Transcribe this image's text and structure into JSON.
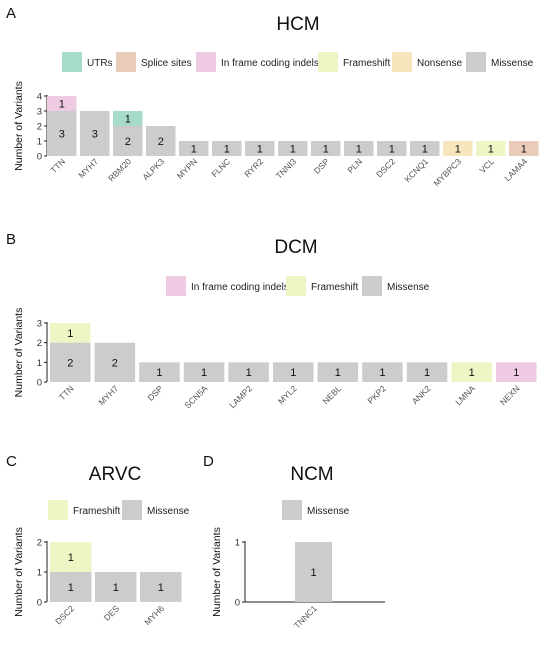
{
  "colors": {
    "UTRs": "#a6dcc7",
    "Splice sites": "#e8cbb9",
    "In frame coding indels": "#eecbe3",
    "Frameshift": "#ecf5c3",
    "Nonsense": "#f6e5bd",
    "Missense": "#cccccc"
  },
  "chart_data": [
    {
      "type": "bar",
      "stacked": true,
      "panel": "A",
      "title": "HCM",
      "ylabel": "Number of Variants",
      "xlabel": "",
      "ylim": [
        0,
        4
      ],
      "yticks": [
        0,
        1,
        2,
        3,
        4
      ],
      "legend": [
        "UTRs",
        "Splice sites",
        "In frame coding indels",
        "Frameshift",
        "Nonsense",
        "Missense"
      ],
      "legend_position": "top",
      "grid": false,
      "categories": [
        "TTN",
        "MYH7",
        "RBM20",
        "ALPK3",
        "MYPN",
        "FLNC",
        "RYR2",
        "TNNI3",
        "DSP",
        "PLN",
        "DSC2",
        "KCNQ1",
        "MYBPC3",
        "VCL",
        "LAMA4"
      ],
      "series": [
        {
          "name": "Missense",
          "values": [
            3,
            3,
            2,
            2,
            1,
            1,
            1,
            1,
            1,
            1,
            1,
            1,
            0,
            0,
            0
          ]
        },
        {
          "name": "In frame coding indels",
          "values": [
            1,
            0,
            0,
            0,
            0,
            0,
            0,
            0,
            0,
            0,
            0,
            0,
            0,
            0,
            0
          ]
        },
        {
          "name": "UTRs",
          "values": [
            0,
            0,
            1,
            0,
            0,
            0,
            0,
            0,
            0,
            0,
            0,
            0,
            0,
            0,
            0
          ]
        },
        {
          "name": "Nonsense",
          "values": [
            0,
            0,
            0,
            0,
            0,
            0,
            0,
            0,
            0,
            0,
            0,
            0,
            1,
            0,
            0
          ]
        },
        {
          "name": "Frameshift",
          "values": [
            0,
            0,
            0,
            0,
            0,
            0,
            0,
            0,
            0,
            0,
            0,
            0,
            0,
            1,
            0
          ]
        },
        {
          "name": "Splice sites",
          "values": [
            0,
            0,
            0,
            0,
            0,
            0,
            0,
            0,
            0,
            0,
            0,
            0,
            0,
            0,
            1
          ]
        }
      ]
    },
    {
      "type": "bar",
      "stacked": true,
      "panel": "B",
      "title": "DCM",
      "ylabel": "Number of Variants",
      "xlabel": "",
      "ylim": [
        0,
        3
      ],
      "yticks": [
        0,
        1,
        2,
        3
      ],
      "legend": [
        "In frame coding indels",
        "Frameshift",
        "Missense"
      ],
      "legend_position": "top",
      "grid": false,
      "categories": [
        "TTN",
        "MYH7",
        "DSP",
        "SCN5A",
        "LAMP2",
        "MYL2",
        "NEBL",
        "PKP2",
        "ANK2",
        "LMNA",
        "NEXN"
      ],
      "series": [
        {
          "name": "Missense",
          "values": [
            2,
            2,
            1,
            1,
            1,
            1,
            1,
            1,
            1,
            0,
            0
          ]
        },
        {
          "name": "Frameshift",
          "values": [
            1,
            0,
            0,
            0,
            0,
            0,
            0,
            0,
            0,
            1,
            0
          ]
        },
        {
          "name": "In frame coding indels",
          "values": [
            0,
            0,
            0,
            0,
            0,
            0,
            0,
            0,
            0,
            0,
            1
          ]
        }
      ]
    },
    {
      "type": "bar",
      "stacked": true,
      "panel": "C",
      "title": "ARVC",
      "ylabel": "Number of Variants",
      "xlabel": "",
      "ylim": [
        0,
        2
      ],
      "yticks": [
        0,
        1,
        2
      ],
      "legend": [
        "Frameshift",
        "Missense"
      ],
      "legend_position": "top",
      "grid": false,
      "categories": [
        "DSC2",
        "DES",
        "MYH6"
      ],
      "series": [
        {
          "name": "Missense",
          "values": [
            1,
            1,
            1
          ]
        },
        {
          "name": "Frameshift",
          "values": [
            1,
            0,
            0
          ]
        }
      ]
    },
    {
      "type": "bar",
      "stacked": true,
      "panel": "D",
      "title": "NCM",
      "ylabel": "Number of Variants",
      "xlabel": "",
      "ylim": [
        0,
        1
      ],
      "yticks": [
        0,
        1
      ],
      "legend": [
        "Missense"
      ],
      "legend_position": "top",
      "grid": false,
      "categories": [
        "TNNC1"
      ],
      "series": [
        {
          "name": "Missense",
          "values": [
            1
          ]
        }
      ]
    }
  ]
}
